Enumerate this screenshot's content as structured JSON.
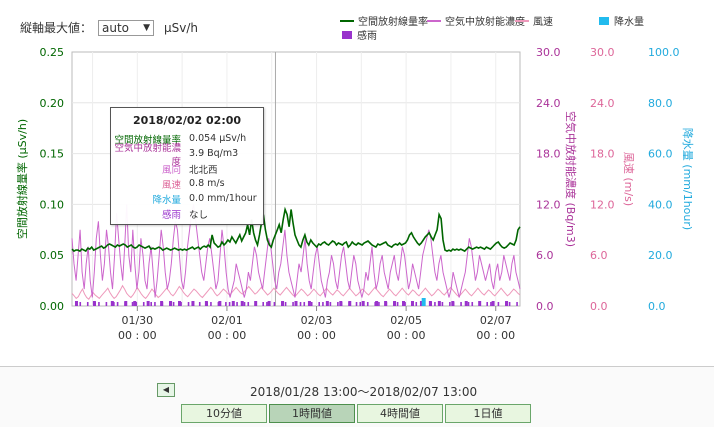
{
  "toolbar": {
    "ymax_label": "縦軸最大値：",
    "ymax_value": "auto",
    "ymax_unit": "μSv/h"
  },
  "legend": [
    {
      "name": "空間放射線量率",
      "color": "#006600",
      "kind": "line"
    },
    {
      "name": "空気中放射能濃度",
      "color": "#cc66cc",
      "kind": "line"
    },
    {
      "name": "風速",
      "color": "#ee99bb",
      "kind": "line"
    },
    {
      "name": "降水量",
      "color": "#22bbee",
      "kind": "box"
    },
    {
      "name": "感雨",
      "color": "#9933cc",
      "kind": "box"
    }
  ],
  "chart_data": {
    "type": "line",
    "x_ticks": [
      {
        "date": "01/30",
        "time": "00 : 00"
      },
      {
        "date": "02/01",
        "time": "00 : 00"
      },
      {
        "date": "02/03",
        "time": "00 : 00"
      },
      {
        "date": "02/05",
        "time": "00 : 00"
      },
      {
        "date": "02/07",
        "time": "00 : 00"
      }
    ],
    "x_range": [
      "2018/01/28 13:00",
      "2018/02/07 13:00"
    ],
    "axes": [
      {
        "name": "空間放射線量率 (μSv/h)",
        "color": "#006600",
        "range": [
          0,
          0.25
        ],
        "ticks": [
          "0.00",
          "0.05",
          "0.10",
          "0.15",
          "0.20",
          "0.25"
        ]
      },
      {
        "name": "空気中放射能濃度 (Bq/m3)",
        "color": "#aa3399",
        "range": [
          0,
          30
        ],
        "ticks": [
          "0.0",
          "6.0",
          "12.0",
          "18.0",
          "24.0",
          "30.0"
        ]
      },
      {
        "name": "風速 (m/s)",
        "color": "#dd6699",
        "range": [
          0,
          30
        ],
        "ticks": [
          "0.0",
          "6.0",
          "12.0",
          "18.0",
          "24.0",
          "30.0"
        ]
      },
      {
        "name": "降水量 (mm/1hour)",
        "color": "#22aadd",
        "range": [
          0,
          100
        ],
        "ticks": [
          "0.0",
          "20.0",
          "40.0",
          "60.0",
          "80.0",
          "100.0"
        ]
      }
    ],
    "series": [
      {
        "name": "空間放射線量率",
        "axis": 0,
        "color": "#006600",
        "values": [
          0.056,
          0.054,
          0.055,
          0.055,
          0.054,
          0.056,
          0.055,
          0.054,
          0.057,
          0.056,
          0.058,
          0.055,
          0.056,
          0.057,
          0.058,
          0.059,
          0.057,
          0.058,
          0.06,
          0.061,
          0.06,
          0.059,
          0.058,
          0.06,
          0.059,
          0.06,
          0.061,
          0.06,
          0.058,
          0.059,
          0.06,
          0.058,
          0.057,
          0.058,
          0.06,
          0.059,
          0.058,
          0.057,
          0.058,
          0.059,
          0.056,
          0.057,
          0.056,
          0.057,
          0.058,
          0.057,
          0.055,
          0.056,
          0.057,
          0.056,
          0.055,
          0.056,
          0.057,
          0.056,
          0.055,
          0.056,
          0.055,
          0.056,
          0.055,
          0.056,
          0.057,
          0.058,
          0.056,
          0.057,
          0.058,
          0.056,
          0.058,
          0.059,
          0.058,
          0.06,
          0.058,
          0.07,
          0.062,
          0.06,
          0.058,
          0.059,
          0.063,
          0.06,
          0.062,
          0.065,
          0.063,
          0.068,
          0.065,
          0.062,
          0.066,
          0.07,
          0.064,
          0.068,
          0.072,
          0.08,
          0.07,
          0.085,
          0.072,
          0.065,
          0.06,
          0.07,
          0.082,
          0.09,
          0.075,
          0.065,
          0.06,
          0.058,
          0.065,
          0.07,
          0.075,
          0.08,
          0.072,
          0.085,
          0.095,
          0.09,
          0.078,
          0.095,
          0.082,
          0.07,
          0.065,
          0.06,
          0.058,
          0.065,
          0.07,
          0.063,
          0.06,
          0.065,
          0.062,
          0.06,
          0.058,
          0.061,
          0.06,
          0.062,
          0.063,
          0.061,
          0.06,
          0.062,
          0.064,
          0.063,
          0.06,
          0.062,
          0.061,
          0.06,
          0.062,
          0.063,
          0.058,
          0.06,
          0.063,
          0.061,
          0.06,
          0.062,
          0.061,
          0.06,
          0.062,
          0.063,
          0.064,
          0.062,
          0.06,
          0.059,
          0.058,
          0.061,
          0.06,
          0.061,
          0.062,
          0.063,
          0.06,
          0.059,
          0.058,
          0.06,
          0.061,
          0.06,
          0.062,
          0.06,
          0.061,
          0.062,
          0.065,
          0.07,
          0.072,
          0.068,
          0.065,
          0.062,
          0.06,
          0.062,
          0.065,
          0.068,
          0.07,
          0.072,
          0.068,
          0.065,
          0.07,
          0.075,
          0.09,
          0.086,
          0.065,
          0.055,
          0.054,
          0.055,
          0.054,
          0.056,
          0.055,
          0.056,
          0.055,
          0.056,
          0.055,
          0.054,
          0.056,
          0.058,
          0.057,
          0.056,
          0.057,
          0.058,
          0.057,
          0.058,
          0.057,
          0.056,
          0.058,
          0.057,
          0.056,
          0.058,
          0.06,
          0.062,
          0.063,
          0.06,
          0.058,
          0.057,
          0.058,
          0.06,
          0.062,
          0.061,
          0.06,
          0.065,
          0.075,
          0.078
        ]
      },
      {
        "name": "空気中放射能濃度",
        "axis": 1,
        "color": "#cc66cc",
        "values": [
          8,
          5,
          3,
          6,
          9,
          4,
          2,
          5,
          7,
          3,
          1,
          4,
          8,
          10,
          6,
          3,
          5,
          9,
          7,
          4,
          2,
          6,
          11,
          8,
          5,
          3,
          7,
          12,
          6,
          4,
          9,
          5,
          2,
          4,
          8,
          6,
          3,
          2,
          5,
          7,
          4,
          1,
          3,
          6,
          9,
          7,
          4,
          2,
          3,
          5,
          8,
          10,
          9,
          6,
          3,
          2,
          4,
          7,
          9,
          11,
          12,
          10,
          8,
          6,
          4,
          3,
          5,
          7,
          8,
          6,
          4,
          2,
          3,
          6,
          9,
          7,
          4,
          2,
          1,
          2,
          3,
          5,
          4,
          3,
          2,
          1,
          2,
          4,
          3,
          5,
          7,
          6,
          4,
          3,
          2,
          4,
          6,
          8,
          7,
          5,
          3,
          2,
          4,
          5,
          7,
          9,
          6,
          4,
          3,
          2,
          1,
          3,
          5,
          4,
          6,
          8,
          5,
          3,
          2,
          4,
          6,
          7,
          5,
          3,
          2,
          1,
          3,
          4,
          6,
          5,
          3,
          2,
          4,
          6,
          7,
          5,
          3,
          2,
          4,
          6,
          5,
          3,
          2,
          1,
          2,
          4,
          3,
          5,
          7,
          4,
          2,
          3,
          5,
          6,
          4,
          3,
          2,
          4,
          5,
          6,
          4,
          3,
          5,
          7,
          6,
          4,
          2,
          3,
          5,
          4,
          3,
          2,
          4,
          6,
          7,
          8,
          9,
          8,
          6,
          4,
          3,
          5,
          6,
          4,
          3,
          2,
          1,
          2,
          4,
          3,
          2,
          1,
          2,
          3,
          4,
          6,
          8,
          7,
          5,
          3,
          4,
          6,
          5,
          4,
          3,
          4,
          5,
          3,
          2,
          4,
          5,
          3,
          4,
          6,
          5,
          4,
          3,
          5,
          6,
          4,
          3,
          2
        ]
      },
      {
        "name": "風速",
        "axis": 2,
        "color": "#ee99bb",
        "values": [
          1.5,
          1.2,
          0.9,
          1.1,
          1.6,
          2,
          1.4,
          1,
          0.8,
          1.2,
          1.6,
          1.3,
          1.1,
          0.9,
          1.2,
          1.5,
          1.8,
          2.1,
          1.6,
          1.2,
          0.9,
          1.1,
          1.5,
          1.9,
          2.4,
          2,
          1.5,
          1.2,
          1,
          1.3,
          1.7,
          2.2,
          1.8,
          1.4,
          1.1,
          0.9,
          1.2,
          1.6,
          2,
          1.7,
          1.3,
          1,
          1.2,
          1.5,
          1.8,
          2.1,
          1.8,
          1.4,
          1.2,
          1.5,
          1.9,
          2.3,
          2,
          1.6,
          1.3,
          1.1,
          1.4,
          1.7,
          2,
          1.8,
          1.5,
          1.2,
          1,
          1.3,
          1.6,
          1.9,
          2.2,
          1.9,
          1.5,
          1.2,
          1.4,
          1.7,
          2,
          1.8,
          1.5,
          1.3,
          1.6,
          1.9,
          2.2,
          1.9,
          1.6,
          1.4,
          1.7,
          2,
          2.3,
          2,
          1.7,
          1.4,
          1.6,
          1.9,
          2.2,
          1.9,
          1.6,
          1.3,
          1.5,
          1.8,
          2.1,
          1.8,
          1.5,
          1.3,
          1.6,
          1.9,
          2.2,
          1.9,
          1.6,
          1.3,
          1.1,
          1.4,
          1.7,
          2,
          1.8,
          1.5,
          1.2,
          1.4,
          1.7,
          2,
          1.7,
          1.4,
          1.2,
          1.5,
          1.8,
          2.1,
          1.8,
          1.5,
          1.3,
          1.6,
          1.9,
          1.7,
          1.4,
          1.2,
          1.5,
          1.8,
          2.1,
          1.8,
          1.5,
          1.2,
          1.4,
          1.7,
          2,
          1.8,
          1.5,
          1.3,
          1.6,
          1.9,
          2.2,
          1.9,
          1.6,
          1.3,
          1.1,
          1.4,
          1.7,
          2,
          1.7,
          1.4,
          1.2,
          1.5,
          1.8,
          2.1,
          1.8,
          1.5,
          1.3,
          1.6,
          1.9,
          1.7,
          1.4,
          1.2,
          1.5,
          1.8,
          2.1,
          1.8,
          1.5,
          1.2,
          1.4,
          1.7,
          2,
          1.8,
          1.5,
          1.3,
          1.6,
          1.9,
          2.2,
          1.9,
          1.6,
          1.3,
          1.1,
          1.4,
          1.7,
          2,
          1.7,
          1.4,
          1.2,
          1.5,
          1.8,
          2.1,
          1.8,
          1.5,
          1.3,
          1.6,
          1.9,
          1.7,
          1.4,
          1.2,
          1.5,
          1.8,
          2.1,
          1.8,
          1.5,
          1.2,
          1.4,
          1.7,
          2,
          1.8,
          1.5,
          1.3
        ]
      }
    ],
    "rain_markers": [
      0.01,
      0.05,
      0.09,
      0.12,
      0.14,
      0.17,
      0.2,
      0.22,
      0.24,
      0.27,
      0.3,
      0.33,
      0.36,
      0.38,
      0.41,
      0.44,
      0.47,
      0.5,
      0.53,
      0.57,
      0.6,
      0.62,
      0.65,
      0.68,
      0.7,
      0.72,
      0.74,
      0.76,
      0.78,
      0.8,
      0.82,
      0.85,
      0.88,
      0.91,
      0.94,
      0.97
    ],
    "precip_markers": [
      0.785
    ]
  },
  "tooltip": {
    "title": "2018/02/02 02:00",
    "rows": [
      {
        "label": "空間放射線量率",
        "value": "0.054 μSv/h",
        "color": "#006600"
      },
      {
        "label": "空気中放射能濃度",
        "value": "3.9 Bq/m3",
        "color": "#aa3399"
      },
      {
        "label": "風向",
        "value": "北北西",
        "color": "#cc66cc"
      },
      {
        "label": "風速",
        "value": "0.8 m/s",
        "color": "#dd6699"
      },
      {
        "label": "降水量",
        "value": "0.0 mm/1hour",
        "color": "#22aadd"
      },
      {
        "label": "感雨",
        "value": "なし",
        "color": "#9933cc"
      }
    ]
  },
  "footer": {
    "prev_label": "◀",
    "period": "2018/01/28 13:00〜2018/02/07 13:00",
    "tabs": [
      {
        "label": "10分値",
        "active": false
      },
      {
        "label": "1時間値",
        "active": true
      },
      {
        "label": "4時間値",
        "active": false
      },
      {
        "label": "1日値",
        "active": false
      }
    ]
  }
}
